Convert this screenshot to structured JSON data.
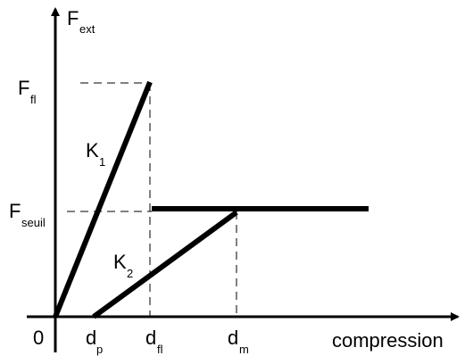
{
  "axes": {
    "y_label": {
      "main": "F",
      "sub": "ext"
    },
    "x_label": "compression",
    "origin": "0"
  },
  "force_labels": [
    {
      "main": "F",
      "sub": "fl"
    },
    {
      "main": "F",
      "sub": "seuil"
    }
  ],
  "stiffness_labels": [
    {
      "main": "K",
      "sub": "1"
    },
    {
      "main": "K",
      "sub": "2"
    }
  ],
  "displacement_labels": [
    {
      "main": "d",
      "sub": "p"
    },
    {
      "main": "d",
      "sub": "fl"
    },
    {
      "main": "d",
      "sub": "m"
    }
  ]
}
